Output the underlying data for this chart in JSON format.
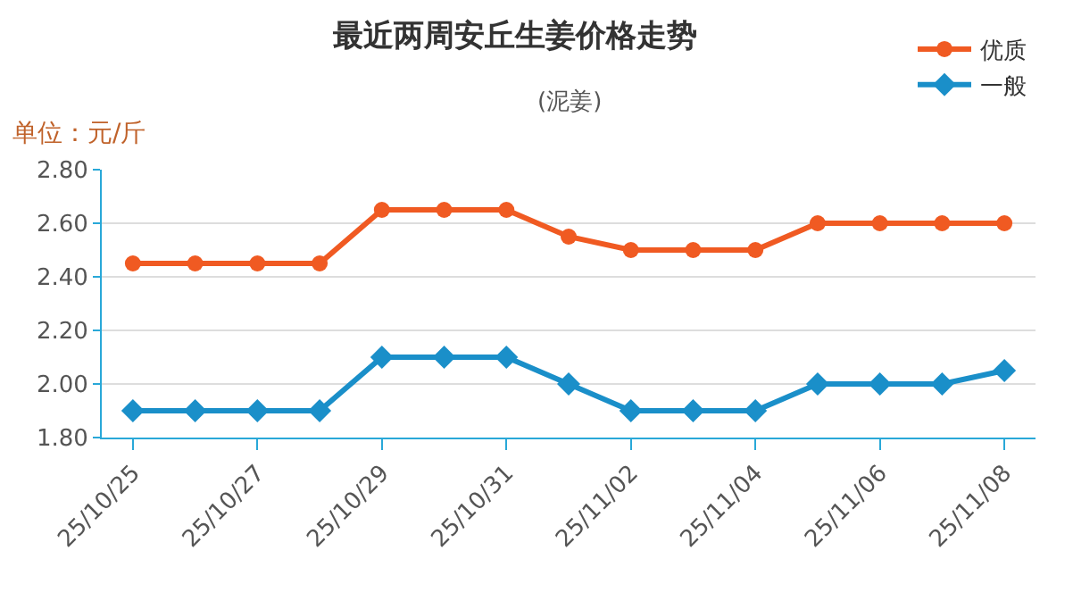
{
  "chart_data": {
    "type": "line",
    "title": "最近两周安丘生姜价格走势",
    "subtitle": "(泥姜)",
    "ylabel": "单位：元/斤",
    "categories": [
      "25/10/25",
      null,
      "25/10/27",
      null,
      "25/10/29",
      null,
      "25/10/31",
      null,
      "25/11/02",
      null,
      "25/11/04",
      null,
      "25/11/06",
      null,
      "25/11/08"
    ],
    "series": [
      {
        "name": "优质",
        "color": "#f05a22",
        "marker": "circle",
        "values": [
          2.45,
          2.45,
          2.45,
          2.45,
          2.65,
          2.65,
          2.65,
          2.55,
          2.5,
          2.5,
          2.5,
          2.6,
          2.6,
          2.6,
          2.6
        ]
      },
      {
        "name": "一般",
        "color": "#1a8fc9",
        "marker": "diamond",
        "values": [
          1.9,
          1.9,
          1.9,
          1.9,
          2.1,
          2.1,
          2.1,
          2.0,
          1.9,
          1.9,
          1.9,
          2.0,
          2.0,
          2.0,
          2.05
        ]
      }
    ],
    "ylim": [
      1.8,
      2.8
    ],
    "yticks": [
      {
        "value": 1.8,
        "label": "1.80"
      },
      {
        "value": 2.0,
        "label": "2.00"
      },
      {
        "value": 2.2,
        "label": "2.20"
      },
      {
        "value": 2.4,
        "label": "2.40"
      },
      {
        "value": 2.6,
        "label": "2.60"
      },
      {
        "value": 2.8,
        "label": "2.80"
      }
    ],
    "grid": "y",
    "legend": "top right",
    "line_style": "solid"
  }
}
